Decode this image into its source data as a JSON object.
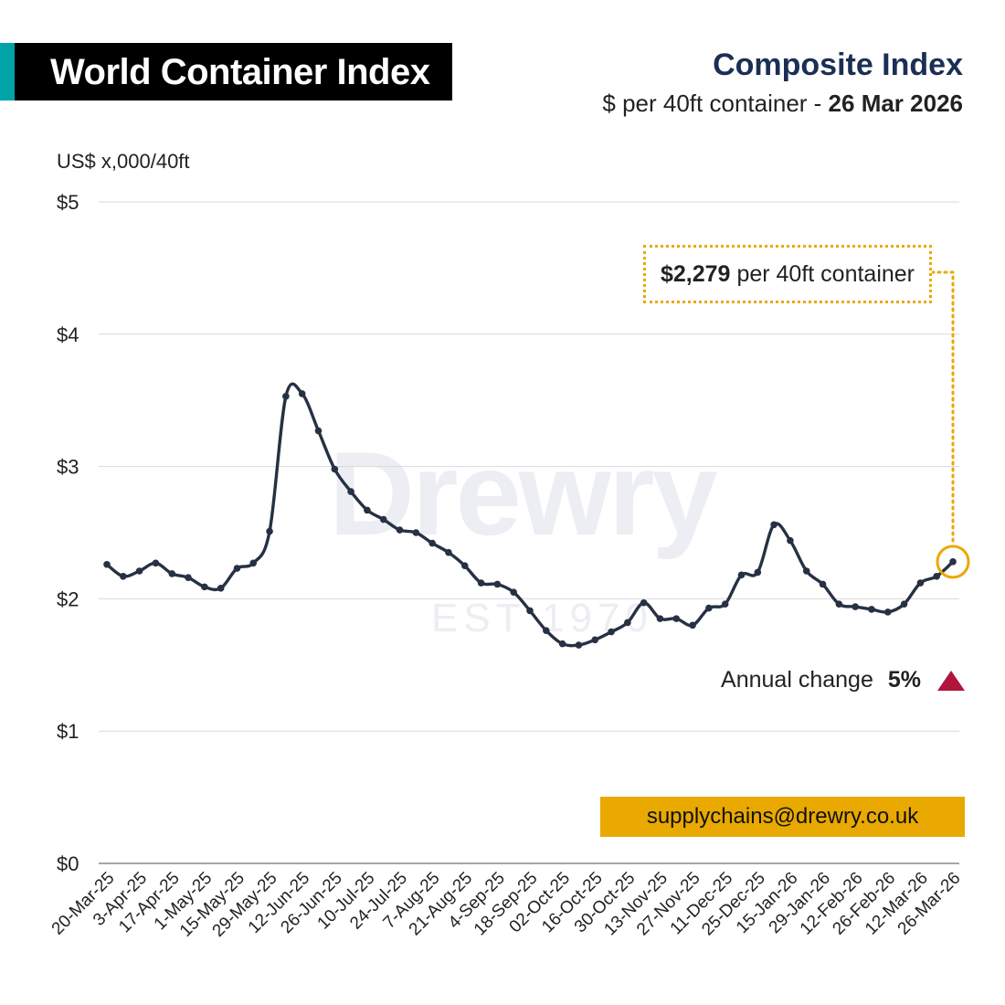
{
  "header": {
    "title": "World Container Index",
    "subtitle": "Composite Index",
    "description_prefix": "$ per 40ft container - ",
    "description_date": "26 Mar 2026",
    "accent_color": "#00a3a6"
  },
  "watermark": {
    "brand": "Drewry",
    "established": "EST 1970"
  },
  "callout": {
    "value": "$2,279",
    "suffix": "per 40ft container"
  },
  "annual_change": {
    "label": "Annual change",
    "value": "5%",
    "direction": "up",
    "color": "#b0163d"
  },
  "contact": {
    "email": "supplychains@drewry.co.uk"
  },
  "chart_data": {
    "type": "line",
    "ylabel": "US$ x,000/40ft",
    "ylim": [
      0,
      5
    ],
    "yticks": [
      0,
      1,
      2,
      3,
      4,
      5
    ],
    "ytick_labels": [
      "$0",
      "$1",
      "$2",
      "$3",
      "$4",
      "$5"
    ],
    "grid": true,
    "line_color": "#263143",
    "highlight_color": "#e9a900",
    "x_tick_labels": [
      "20-Mar-25",
      "3-Apr-25",
      "17-Apr-25",
      "1-May-25",
      "15-May-25",
      "29-May-25",
      "12-Jun-25",
      "26-Jun-25",
      "10-Jul-25",
      "24-Jul-25",
      "7-Aug-25",
      "21-Aug-25",
      "4-Sep-25",
      "18-Sep-25",
      "02-Oct-25",
      "16-Oct-25",
      "30-Oct-25",
      "13-Nov-25",
      "27-Nov-25",
      "11-Dec-25",
      "25-Dec-25",
      "15-Jan-26",
      "29-Jan-26",
      "12-Feb-26",
      "26-Feb-26",
      "12-Mar-26",
      "26-Mar-26"
    ],
    "values": [
      2.26,
      2.17,
      2.21,
      2.27,
      2.19,
      2.16,
      2.09,
      2.08,
      2.23,
      2.27,
      2.51,
      3.53,
      3.55,
      3.27,
      2.98,
      2.81,
      2.67,
      2.6,
      2.52,
      2.5,
      2.42,
      2.35,
      2.25,
      2.12,
      2.11,
      2.05,
      1.91,
      1.76,
      1.66,
      1.65,
      1.69,
      1.75,
      1.82,
      1.97,
      1.85,
      1.85,
      1.8,
      1.93,
      1.96,
      2.18,
      2.2,
      2.56,
      2.44,
      2.21,
      2.11,
      1.96,
      1.94,
      1.92,
      1.9,
      1.96,
      2.12,
      2.17,
      2.28
    ],
    "highlight_last": true
  }
}
